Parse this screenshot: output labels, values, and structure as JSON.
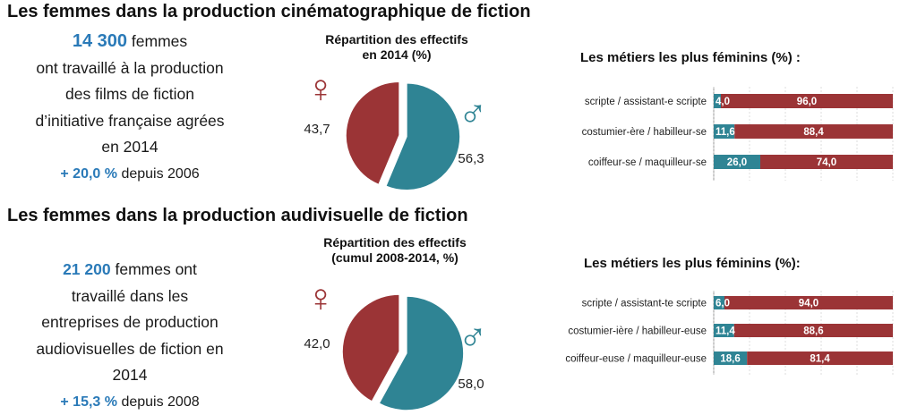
{
  "colors": {
    "female": "#9b3436",
    "male": "#2f8494",
    "accent": "#2a7ab8",
    "grid": "#d0d0d0"
  },
  "section1": {
    "title": "Les femmes dans la production cinématographique de fiction",
    "summary": {
      "count": "14 300",
      "count_suffix": "femmes",
      "lines": [
        "ont travaillé à la production",
        "des films de fiction",
        "d’initiative française agrées",
        "en 2014"
      ],
      "evolution_value": "+ 20,0 %",
      "evolution_text": "depuis 2006"
    },
    "pie_title": [
      "Répartition des effectifs",
      "en 2014 (%)"
    ],
    "bars_title": "Les métiers les plus féminins (%) :"
  },
  "section2": {
    "title": "Les femmes dans la production audivisuelle de fiction",
    "summary": {
      "count": "21 200",
      "count_suffix": "femmes ont",
      "lines": [
        "travaillé dans les",
        "entreprises de production",
        "audiovisuelles de fiction en",
        "2014"
      ],
      "evolution_value": "+ 15,3 %",
      "evolution_text": "depuis 2008"
    },
    "pie_title": [
      "Répartition des effectifs",
      "(cumul 2008-2014, %)"
    ],
    "bars_title": "Les métiers les plus féminins (%):"
  },
  "chart_data": [
    {
      "type": "pie",
      "title": "Répartition des effectifs en 2014 (%)",
      "slices": [
        {
          "name": "♀",
          "value": 43.7,
          "label": "43,7"
        },
        {
          "name": "♂",
          "value": 56.3,
          "label": "56,3"
        }
      ]
    },
    {
      "type": "bar",
      "orientation": "horizontal",
      "stacked": true,
      "title": "Les métiers les plus féminins (%) :",
      "categories": [
        "scripte / assistant-e scripte",
        "costumier-ère / habilleur-se",
        "coiffeur-se / maquilleur-se"
      ],
      "series": [
        {
          "values": [
            4.0,
            11.6,
            26.0
          ],
          "labels": [
            "4,0",
            "11,6",
            "26,0"
          ]
        },
        {
          "values": [
            96.0,
            88.4,
            74.0
          ],
          "labels": [
            "96,0",
            "88,4",
            "74,0"
          ]
        }
      ],
      "xlim": [
        0,
        100
      ]
    },
    {
      "type": "pie",
      "title": "Répartition des effectifs (cumul 2008-2014, %)",
      "slices": [
        {
          "name": "♀",
          "value": 42.0,
          "label": "42,0"
        },
        {
          "name": "♂",
          "value": 58.0,
          "label": "58,0"
        }
      ]
    },
    {
      "type": "bar",
      "orientation": "horizontal",
      "stacked": true,
      "title": "Les métiers les plus féminins (%):",
      "categories": [
        "scripte / assistant-te scripte",
        "costumier-ière / habilleur-euse",
        "coiffeur-euse / maquilleur-euse"
      ],
      "series": [
        {
          "values": [
            6.0,
            11.4,
            18.6
          ],
          "labels": [
            "6,0",
            "11,4",
            "18,6"
          ]
        },
        {
          "values": [
            94.0,
            88.6,
            81.4
          ],
          "labels": [
            "94,0",
            "88,6",
            "81,4"
          ]
        }
      ],
      "xlim": [
        0,
        100
      ]
    }
  ]
}
